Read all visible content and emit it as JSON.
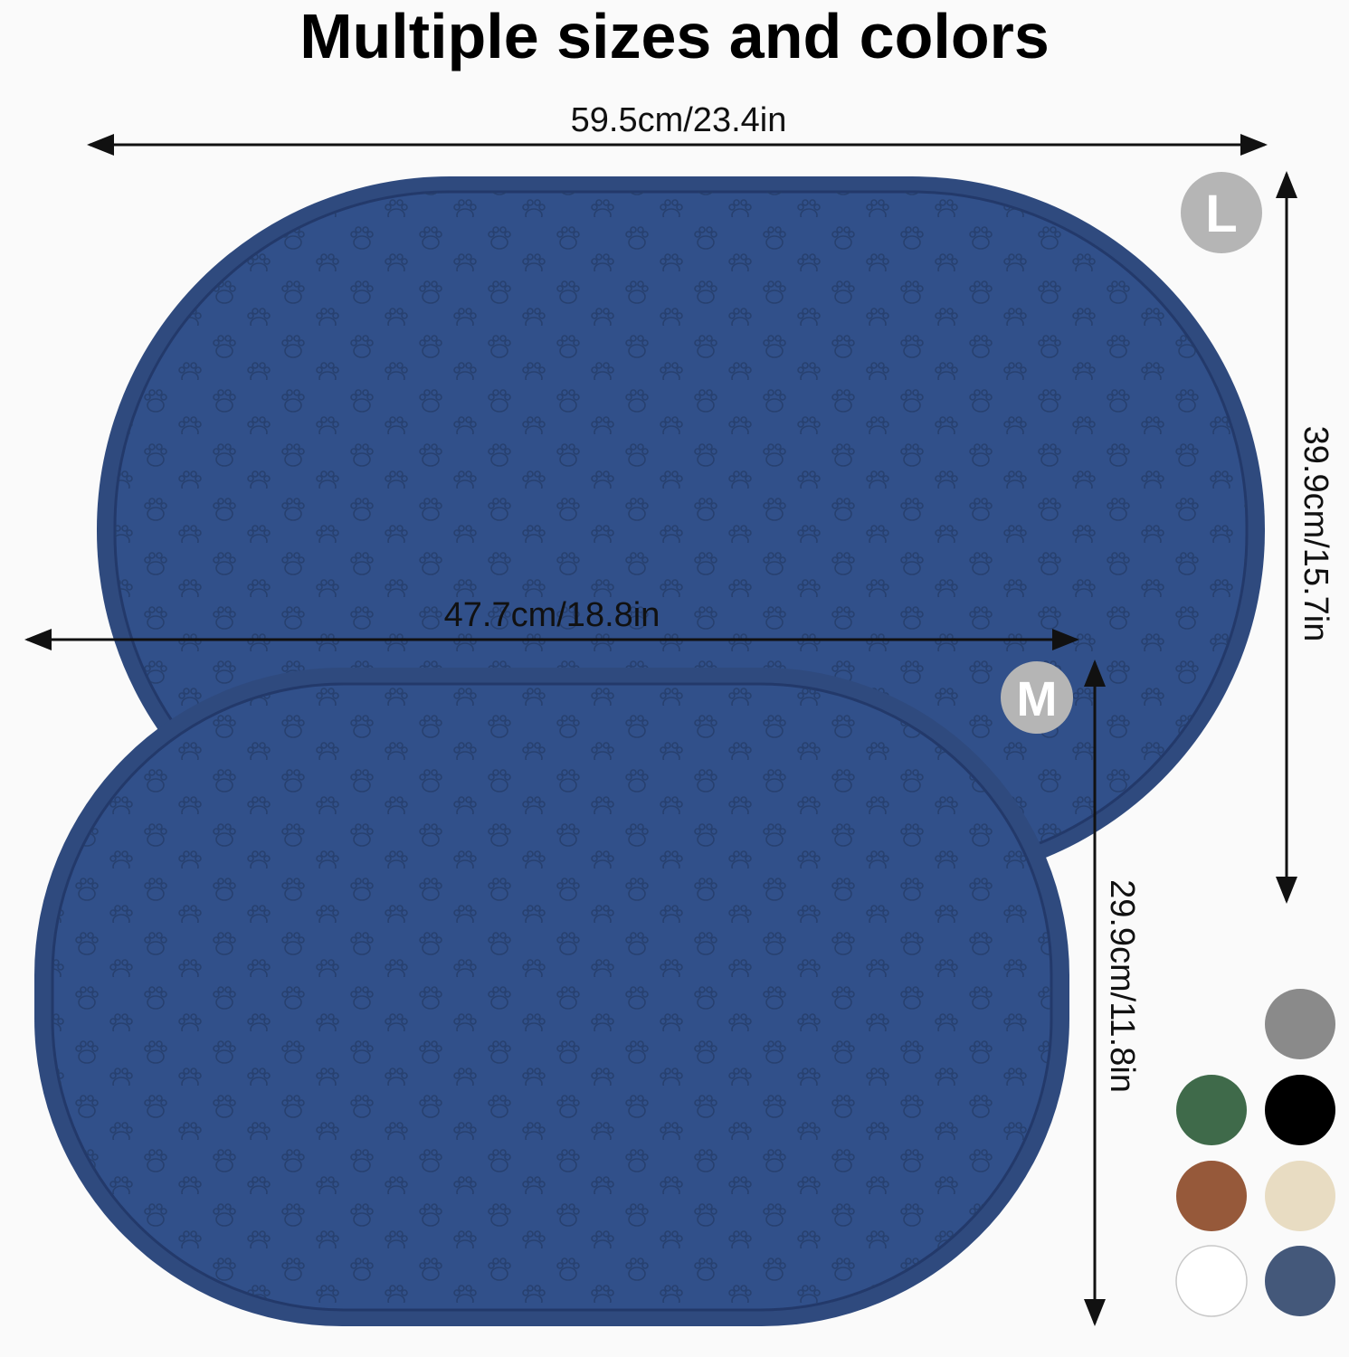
{
  "title": "Multiple sizes and colors",
  "dimensions": {
    "large_width": "59.5cm/23.4in",
    "large_height": "39.9cm/15.7in",
    "medium_width": "47.7cm/18.8in",
    "medium_height": "29.9cm/11.8in"
  },
  "badges": {
    "large": "L",
    "medium": "M",
    "color": "#b5b5b5"
  },
  "mat_color": "#2f4a7e",
  "swatches": [
    {
      "name": "gray",
      "color": "#8a8a8a"
    },
    {
      "name": "green",
      "color": "#3f6a4a"
    },
    {
      "name": "black",
      "color": "#000000"
    },
    {
      "name": "brown",
      "color": "#96593a"
    },
    {
      "name": "beige",
      "color": "#e8dcc2"
    },
    {
      "name": "white",
      "color": "#ffffff"
    },
    {
      "name": "navy",
      "color": "#44587a"
    }
  ]
}
